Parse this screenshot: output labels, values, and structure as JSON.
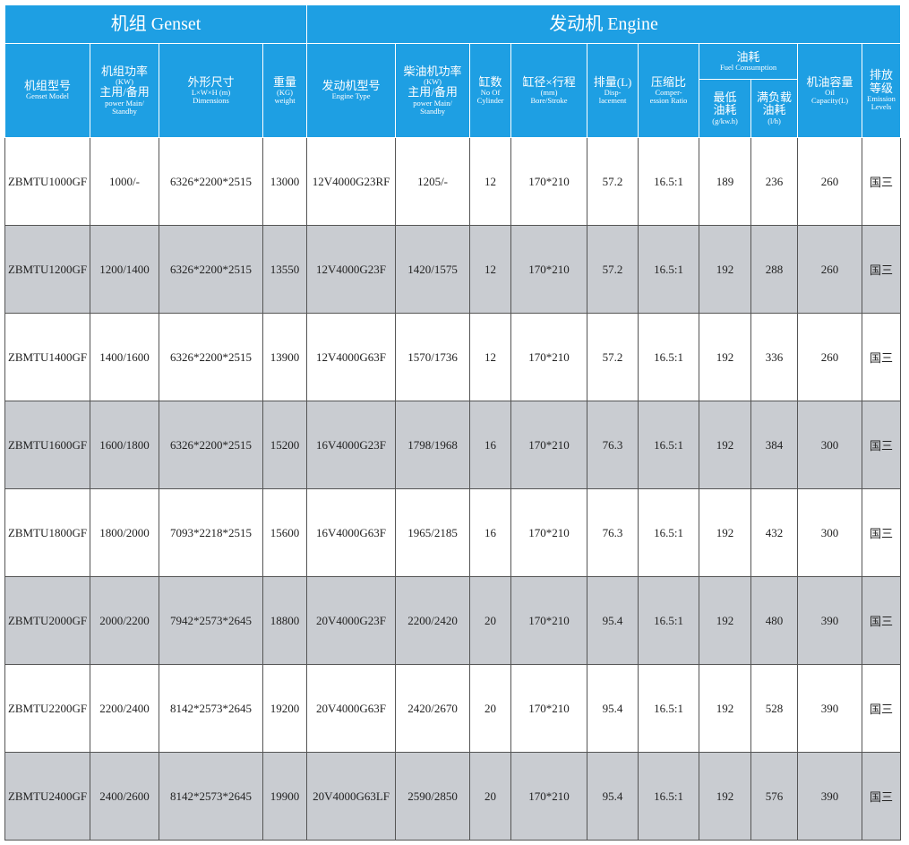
{
  "header": {
    "groups": [
      "机组 Genset",
      "发动机 Engine"
    ],
    "columns": [
      [
        "机组型号",
        "Genset Model"
      ],
      [
        "机组功率",
        "(KW)",
        "主用/备用",
        "power Main/",
        "Standby"
      ],
      [
        "外形尺寸",
        "L×W×H (m)",
        "Dimensions"
      ],
      [
        "重量",
        "(KG)",
        "weight"
      ],
      [
        "发动机型号",
        "Engine Type"
      ],
      [
        "柴油机功率",
        "(KW)",
        "主用/备用",
        "power Main/",
        "Standby"
      ],
      [
        "缸数",
        "No Of",
        "Cylinder"
      ],
      [
        "缸径×行程",
        "(mm)",
        "Bore/Stroke"
      ],
      [
        "排量(L)",
        "Disp-",
        "lacement"
      ],
      [
        "压缩比",
        "Comper-",
        "ession Ratio"
      ]
    ],
    "fuel": {
      "lines": [
        "油耗",
        "Fuel Consumption"
      ],
      "subs": [
        [
          "最低",
          "油耗",
          "(g/kw.h)"
        ],
        [
          "满负载",
          "油耗",
          "(l/h)"
        ]
      ]
    },
    "tail_columns": [
      [
        "机油容量",
        "Oil",
        "Capacity(L)"
      ],
      [
        "排放",
        "等级",
        "Emission",
        "Levels"
      ]
    ]
  },
  "table": {
    "rows": [
      [
        "ZBMTU1000GF",
        "1000/-",
        "6326*2200*2515",
        "13000",
        "12V4000G23RF",
        "1205/-",
        "12",
        "170*210",
        "57.2",
        "16.5:1",
        "189",
        "236",
        "260",
        "国三"
      ],
      [
        "ZBMTU1200GF",
        "1200/1400",
        "6326*2200*2515",
        "13550",
        "12V4000G23F",
        "1420/1575",
        "12",
        "170*210",
        "57.2",
        "16.5:1",
        "192",
        "288",
        "260",
        "国三"
      ],
      [
        "ZBMTU1400GF",
        "1400/1600",
        "6326*2200*2515",
        "13900",
        "12V4000G63F",
        "1570/1736",
        "12",
        "170*210",
        "57.2",
        "16.5:1",
        "192",
        "336",
        "260",
        "国三"
      ],
      [
        "ZBMTU1600GF",
        "1600/1800",
        "6326*2200*2515",
        "15200",
        "16V4000G23F",
        "1798/1968",
        "16",
        "170*210",
        "76.3",
        "16.5:1",
        "192",
        "384",
        "300",
        "国三"
      ],
      [
        "ZBMTU1800GF",
        "1800/2000",
        "7093*2218*2515",
        "15600",
        "16V4000G63F",
        "1965/2185",
        "16",
        "170*210",
        "76.3",
        "16.5:1",
        "192",
        "432",
        "300",
        "国三"
      ],
      [
        "ZBMTU2000GF",
        "2000/2200",
        "7942*2573*2645",
        "18800",
        "20V4000G23F",
        "2200/2420",
        "20",
        "170*210",
        "95.4",
        "16.5:1",
        "192",
        "480",
        "390",
        "国三"
      ],
      [
        "ZBMTU2200GF",
        "2200/2400",
        "8142*2573*2645",
        "19200",
        "20V4000G63F",
        "2420/2670",
        "20",
        "170*210",
        "95.4",
        "16.5:1",
        "192",
        "528",
        "390",
        "国三"
      ],
      [
        "ZBMTU2400GF",
        "2400/2600",
        "8142*2573*2645",
        "19900",
        "20V4000G63LF",
        "2590/2850",
        "20",
        "170*210",
        "95.4",
        "16.5:1",
        "192",
        "576",
        "390",
        "国三"
      ]
    ]
  }
}
